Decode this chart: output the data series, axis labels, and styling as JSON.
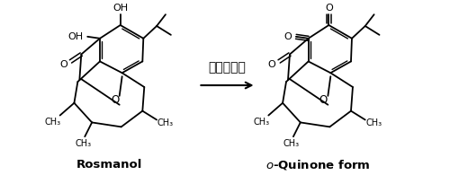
{
  "arrow_label": "ラッカーゼ",
  "left_label": "Rosmanol",
  "right_label": "o-Quinone form",
  "bg_color": "#ffffff",
  "line_color": "#000000",
  "fig_width": 5.0,
  "fig_height": 1.95,
  "dpi": 100
}
